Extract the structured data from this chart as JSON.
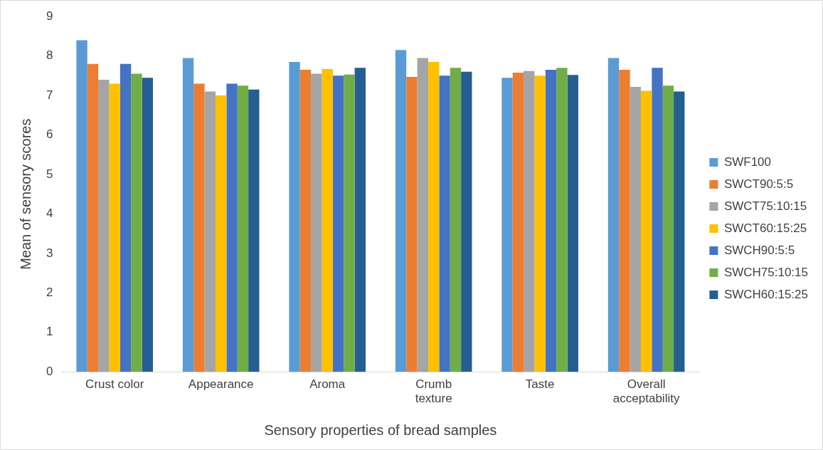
{
  "chart_data": {
    "type": "bar",
    "xlabel": "Sensory properties of bread samples",
    "ylabel": "Mean of sensory scores",
    "categories": [
      "Crust color",
      "Appearance",
      "Aroma",
      "Crumb texture",
      "Taste",
      "Overall acceptability"
    ],
    "series": [
      {
        "name": "SWF100",
        "color": "#5b9bd5",
        "values": [
          8.4,
          7.95,
          7.85,
          8.15,
          7.45,
          7.95
        ]
      },
      {
        "name": "SWCT90:5:5",
        "color": "#ed7d31",
        "values": [
          7.8,
          7.3,
          7.65,
          7.47,
          7.58,
          7.65
        ]
      },
      {
        "name": "SWCT75:10:15",
        "color": "#a5a5a5",
        "values": [
          7.4,
          7.1,
          7.55,
          7.95,
          7.62,
          7.22
        ]
      },
      {
        "name": "SWCT60:15:25",
        "color": "#ffc000",
        "values": [
          7.3,
          7.0,
          7.67,
          7.85,
          7.5,
          7.12
        ]
      },
      {
        "name": "SWCH90:5:5",
        "color": "#4472c4",
        "values": [
          7.8,
          7.3,
          7.5,
          7.5,
          7.65,
          7.7
        ]
      },
      {
        "name": "SWCH75:10:15",
        "color": "#70ad47",
        "values": [
          7.55,
          7.25,
          7.53,
          7.7,
          7.7,
          7.25
        ]
      },
      {
        "name": "SWCH60:15:25",
        "color": "#255e91",
        "values": [
          7.45,
          7.15,
          7.7,
          7.6,
          7.52,
          7.1
        ]
      }
    ],
    "ylim": [
      0,
      9
    ],
    "yticks": [
      0,
      1,
      2,
      3,
      4,
      5,
      6,
      7,
      8,
      9
    ],
    "grid": false,
    "legend": "right"
  }
}
